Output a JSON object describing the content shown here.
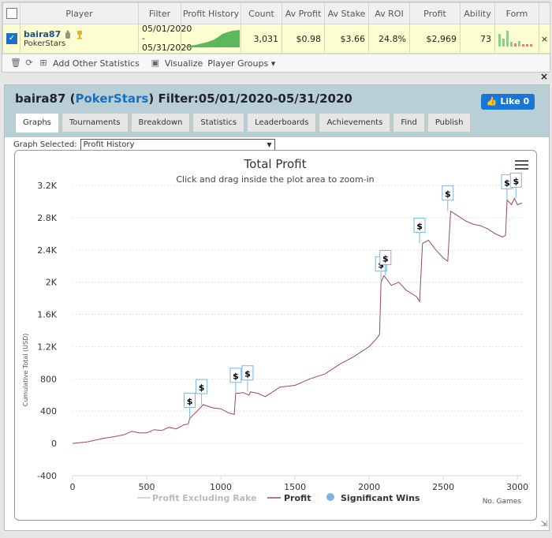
{
  "table": {
    "headers": [
      "",
      "Player",
      "Filter",
      "Profit History",
      "Count",
      "Av Profit",
      "Av Stake",
      "Av ROI",
      "Profit",
      "Ability",
      "Form"
    ],
    "row": {
      "player": "baira87",
      "site": "PokerStars",
      "filter": "05/01/2020 - 05/31/2020",
      "count": "3,031",
      "av_profit": "$0.98",
      "av_stake": "$3.66",
      "av_roi": "24.8%",
      "profit": "$2,969",
      "ability": "73"
    },
    "row_close": "×"
  },
  "toolbar": {
    "add_label": "Add Other Statistics",
    "visualize_label": "Visualize",
    "groups_label": "Player Groups ▾"
  },
  "panel": {
    "player": "baira87",
    "site": "PokerStars",
    "filter_text": "Filter:05/01/2020-05/31/2020",
    "like_label": "Like 0",
    "close": "×",
    "tabs": [
      "Graphs",
      "Tournaments",
      "Breakdown",
      "Statistics",
      "Leaderboards",
      "Achievements",
      "Find",
      "Publish"
    ],
    "graph_selected_label": "Graph Selected:",
    "graph_selected_value": "Profit History",
    "resize": "⇲"
  },
  "colors": {
    "accent": "#1e6fc5",
    "line": "#a04850",
    "rake_line": "#c8c8c8",
    "sig_win": "#7cb5ec",
    "header_bg": "#b9cfd6"
  },
  "chart_data": {
    "type": "line",
    "title": "Total Profit",
    "subtitle": "Click and drag inside the plot area to zoom-in",
    "ylabel": "Cumulative Total (USD)",
    "xlabel": "No. Games",
    "ylim": [
      -400,
      3200
    ],
    "xlim": [
      0,
      3031
    ],
    "yticks": [
      -400,
      0,
      400,
      800,
      1200,
      1600,
      2000,
      2400,
      2800,
      3200
    ],
    "ytick_labels": [
      "-400",
      "0",
      "400",
      "800",
      "1.2K",
      "1.6K",
      "2K",
      "2.4K",
      "2.8K",
      "3.2K"
    ],
    "xticks": [
      0,
      500,
      1000,
      1500,
      2000,
      2500,
      3000
    ],
    "legend": [
      "Profit Excluding Rake",
      "Profit",
      "Significant Wins"
    ],
    "series": [
      {
        "name": "Profit",
        "x": [
          0,
          100,
          200,
          300,
          350,
          400,
          450,
          500,
          550,
          600,
          650,
          700,
          750,
          780,
          790,
          840,
          880,
          950,
          1000,
          1050,
          1090,
          1100,
          1150,
          1190,
          1200,
          1250,
          1300,
          1400,
          1500,
          1600,
          1700,
          1800,
          1900,
          2000,
          2050,
          2070,
          2080,
          2100,
          2150,
          2200,
          2250,
          2320,
          2340,
          2360,
          2400,
          2450,
          2500,
          2530,
          2550,
          2600,
          2650,
          2700,
          2750,
          2800,
          2850,
          2900,
          2920,
          2930,
          2960,
          2980,
          3000,
          3031
        ],
        "y": [
          0,
          20,
          60,
          90,
          110,
          150,
          130,
          130,
          170,
          160,
          200,
          180,
          230,
          240,
          310,
          400,
          480,
          440,
          430,
          380,
          360,
          620,
          630,
          600,
          640,
          620,
          580,
          700,
          720,
          800,
          860,
          980,
          1080,
          1200,
          1300,
          1350,
          2000,
          2080,
          1960,
          2000,
          1900,
          1820,
          1760,
          2480,
          2520,
          2400,
          2300,
          2260,
          2880,
          2820,
          2760,
          2720,
          2700,
          2660,
          2600,
          2560,
          2580,
          3020,
          2960,
          3040,
          2960,
          2980
        ]
      }
    ],
    "significant_wins": [
      {
        "x": 790,
        "y": 310
      },
      {
        "x": 870,
        "y": 480
      },
      {
        "x": 1100,
        "y": 620
      },
      {
        "x": 1180,
        "y": 650
      },
      {
        "x": 2080,
        "y": 2000
      },
      {
        "x": 2110,
        "y": 2080
      },
      {
        "x": 2340,
        "y": 2480
      },
      {
        "x": 2530,
        "y": 2880
      },
      {
        "x": 2930,
        "y": 3020
      },
      {
        "x": 2990,
        "y": 3040
      }
    ],
    "significant_win_marker": "$",
    "grid": true,
    "legend_position": "bottom"
  }
}
